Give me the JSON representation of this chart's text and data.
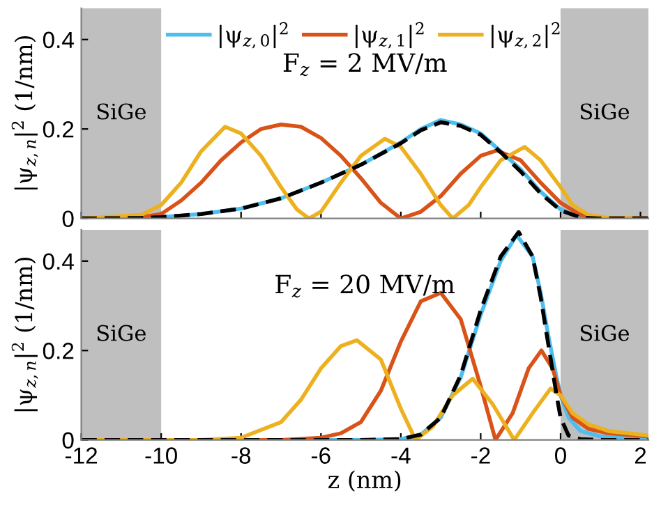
{
  "chart_data": [
    {
      "type": "line",
      "ylabel": "|ψ$_{z,n}$|$^{2}$ (1/nm)",
      "annotations": [
        "F$_{z}$ = 2 MV/m"
      ],
      "xlim": [
        -12,
        2.2
      ],
      "ylim": [
        0,
        0.47
      ],
      "xticks": [
        -12,
        -10,
        -8,
        -6,
        -4,
        -2,
        0,
        2
      ],
      "yticks": [
        0,
        0.2,
        0.4
      ],
      "tick_labels": "y",
      "legend": "top",
      "grid": false,
      "line_style": "solid",
      "marker": "none",
      "bands": [
        {
          "axis": "x",
          "from": -12,
          "to": -10,
          "label": "SiGe",
          "color": "#bfbfbf"
        },
        {
          "axis": "x",
          "from": 0,
          "to": 2.2,
          "label": "SiGe",
          "color": "#bfbfbf"
        }
      ],
      "series": [
        {
          "name": "|ψ$_{z,0}$|$^{2}$",
          "color": "#4dbeee",
          "x": [
            -12,
            -10.5,
            -10,
            -9,
            -8,
            -7,
            -6,
            -5,
            -4,
            -3.5,
            -3,
            -2.5,
            -2,
            -1.5,
            -1,
            -0.5,
            0,
            0.5,
            1,
            2.2
          ],
          "values": [
            0,
            0.001,
            0.003,
            0.01,
            0.022,
            0.045,
            0.08,
            0.12,
            0.17,
            0.2,
            0.22,
            0.21,
            0.19,
            0.15,
            0.11,
            0.06,
            0.02,
            0.003,
            0,
            0
          ]
        },
        {
          "name": "|ψ$_{z,1}$|$^{2}$",
          "color": "#d95319",
          "x": [
            -12,
            -10.5,
            -10,
            -9.5,
            -9,
            -8.5,
            -8,
            -7.5,
            -7,
            -6.5,
            -6,
            -5.5,
            -5,
            -4.5,
            -4,
            -3.5,
            -3,
            -2.5,
            -2,
            -1.6,
            -1,
            -0.5,
            0,
            0.5,
            1,
            2.2
          ],
          "values": [
            0,
            0.003,
            0.01,
            0.04,
            0.08,
            0.13,
            0.17,
            0.2,
            0.21,
            0.205,
            0.18,
            0.14,
            0.09,
            0.035,
            0,
            0.015,
            0.05,
            0.1,
            0.14,
            0.152,
            0.13,
            0.08,
            0.035,
            0.008,
            0.001,
            0
          ]
        },
        {
          "name": "|ψ$_{z,2}$|$^{2}$",
          "color": "#edb120",
          "x": [
            -12,
            -10.5,
            -10,
            -9.5,
            -9,
            -8.4,
            -8,
            -7.5,
            -7,
            -6.6,
            -6.3,
            -6,
            -5.5,
            -5,
            -4.4,
            -4,
            -3.5,
            -3,
            -2.7,
            -2.3,
            -2,
            -1.5,
            -0.9,
            -0.5,
            0,
            0.3,
            0.7,
            1.2,
            2.2
          ],
          "values": [
            0,
            0.008,
            0.03,
            0.08,
            0.15,
            0.205,
            0.19,
            0.14,
            0.07,
            0.02,
            0,
            0.015,
            0.08,
            0.14,
            0.178,
            0.16,
            0.1,
            0.03,
            0,
            0.03,
            0.07,
            0.13,
            0.16,
            0.13,
            0.07,
            0.03,
            0.008,
            0.001,
            0
          ]
        },
        {
          "color": "#000000",
          "line_style": "dashed",
          "x": [
            -12,
            -10.5,
            -10,
            -9,
            -8,
            -7,
            -6,
            -5,
            -4,
            -3.5,
            -3,
            -2.5,
            -2,
            -1.5,
            -1,
            -0.5,
            0,
            0.5,
            1,
            2.2
          ],
          "values": [
            0,
            0.001,
            0.003,
            0.01,
            0.022,
            0.045,
            0.08,
            0.12,
            0.168,
            0.197,
            0.215,
            0.207,
            0.187,
            0.148,
            0.105,
            0.056,
            0.018,
            0.002,
            0,
            0
          ]
        }
      ]
    },
    {
      "type": "line",
      "xlabel": "z (nm)",
      "ylabel": "|ψ$_{z,n}$|$^{2}$ (1/nm)",
      "annotations": [
        "F$_{z}$ = 20 MV/m"
      ],
      "xlim": [
        -12,
        2.2
      ],
      "ylim": [
        0,
        0.47
      ],
      "xticks": [
        -12,
        -10,
        -8,
        -6,
        -4,
        -2,
        0,
        2
      ],
      "yticks": [
        0,
        0.2,
        0.4
      ],
      "grid": false,
      "line_style": "solid",
      "marker": "none",
      "bands": [
        {
          "axis": "x",
          "from": -12,
          "to": -10,
          "label": "SiGe",
          "color": "#bfbfbf"
        },
        {
          "axis": "x",
          "from": 0,
          "to": 2.2,
          "label": "SiGe",
          "color": "#bfbfbf"
        }
      ],
      "series": [
        {
          "color": "#4dbeee",
          "x": [
            -12,
            -5,
            -4,
            -3.5,
            -3,
            -2.5,
            -2,
            -1.5,
            -1.1,
            -0.7,
            -0.5,
            -0.3,
            -0.1,
            0,
            0.2,
            0.5,
            1,
            2.2
          ],
          "values": [
            0,
            0,
            0.002,
            0.012,
            0.05,
            0.14,
            0.28,
            0.4,
            0.458,
            0.41,
            0.33,
            0.23,
            0.14,
            0.1,
            0.05,
            0.02,
            0.008,
            0.003
          ]
        },
        {
          "color": "#d95319",
          "x": [
            -12,
            -7,
            -6,
            -5.5,
            -5,
            -4.5,
            -4,
            -3.5,
            -3,
            -2.5,
            -2,
            -1.63,
            -1.2,
            -0.8,
            -0.48,
            -0.2,
            0,
            0.3,
            0.7,
            1.2,
            2.2
          ],
          "values": [
            0,
            0,
            0.005,
            0.015,
            0.04,
            0.11,
            0.22,
            0.31,
            0.329,
            0.27,
            0.12,
            0,
            0.06,
            0.16,
            0.2,
            0.16,
            0.1,
            0.05,
            0.025,
            0.015,
            0.008
          ]
        },
        {
          "color": "#edb120",
          "x": [
            -12,
            -9,
            -8,
            -7,
            -6.5,
            -6,
            -5.5,
            -5.1,
            -4.5,
            -4,
            -3.63,
            -3.2,
            -2.7,
            -2.2,
            -1.7,
            -1.16,
            -0.7,
            -0.25,
            0,
            0.3,
            0.7,
            1.2,
            2.2
          ],
          "values": [
            0,
            0,
            0.005,
            0.04,
            0.09,
            0.16,
            0.21,
            0.223,
            0.18,
            0.07,
            0,
            0.03,
            0.1,
            0.137,
            0.08,
            0,
            0.06,
            0.115,
            0.1,
            0.06,
            0.035,
            0.02,
            0.01
          ]
        },
        {
          "color": "#000000",
          "line_style": "dashed",
          "x": [
            -12,
            -5,
            -4,
            -3.5,
            -3,
            -2.5,
            -2,
            -1.5,
            -1.05,
            -0.7,
            -0.5,
            -0.3,
            -0.1,
            0,
            0.2,
            0.5,
            1,
            2.2
          ],
          "values": [
            0,
            0,
            0.002,
            0.012,
            0.05,
            0.145,
            0.29,
            0.41,
            0.465,
            0.41,
            0.32,
            0.21,
            0.1,
            0.05,
            0.01,
            0.002,
            0,
            0
          ]
        }
      ]
    }
  ]
}
